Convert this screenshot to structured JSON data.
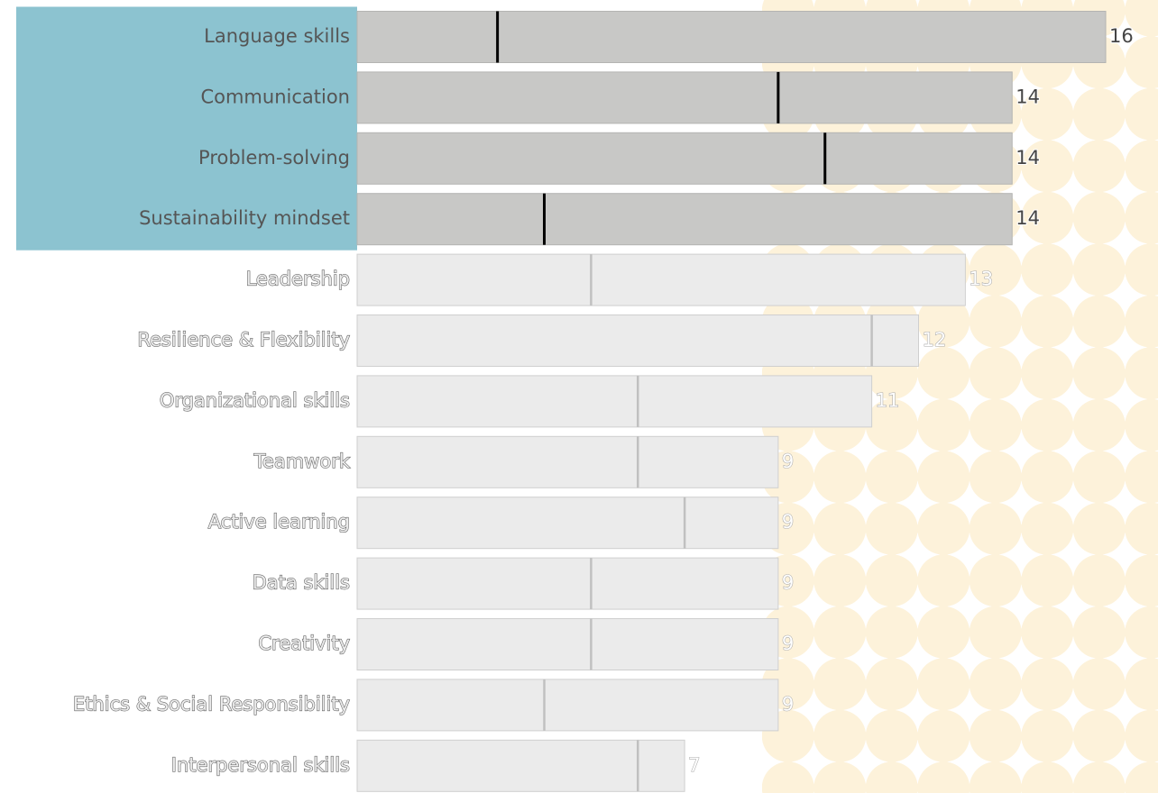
{
  "chart_data": {
    "type": "bar",
    "categories": [
      "Language skills",
      "Communication",
      "Problem-solving",
      "Sustainability mindset",
      "Leadership",
      "Resilience & Flexibility",
      "Organizational skills",
      "Teamwork",
      "Active learning",
      "Data skills",
      "Creativity",
      "Ethics & Social Responsibility",
      "Interpersonal skills"
    ],
    "values": [
      16,
      14,
      14,
      14,
      13,
      12,
      11,
      9,
      9,
      9,
      9,
      9,
      7
    ],
    "marker_values": [
      3,
      9,
      10,
      4,
      5,
      11,
      6,
      6,
      7,
      5,
      5,
      4,
      6
    ],
    "highlighted": [
      true,
      true,
      true,
      true,
      false,
      false,
      false,
      false,
      false,
      false,
      false,
      false,
      false
    ],
    "colors": {
      "bar": "#c8c8c6",
      "bar_dim": "#ebebeb",
      "marker": "#000000",
      "marker_dim": "#c0c0c0",
      "selection": "#8cc3d0"
    }
  }
}
